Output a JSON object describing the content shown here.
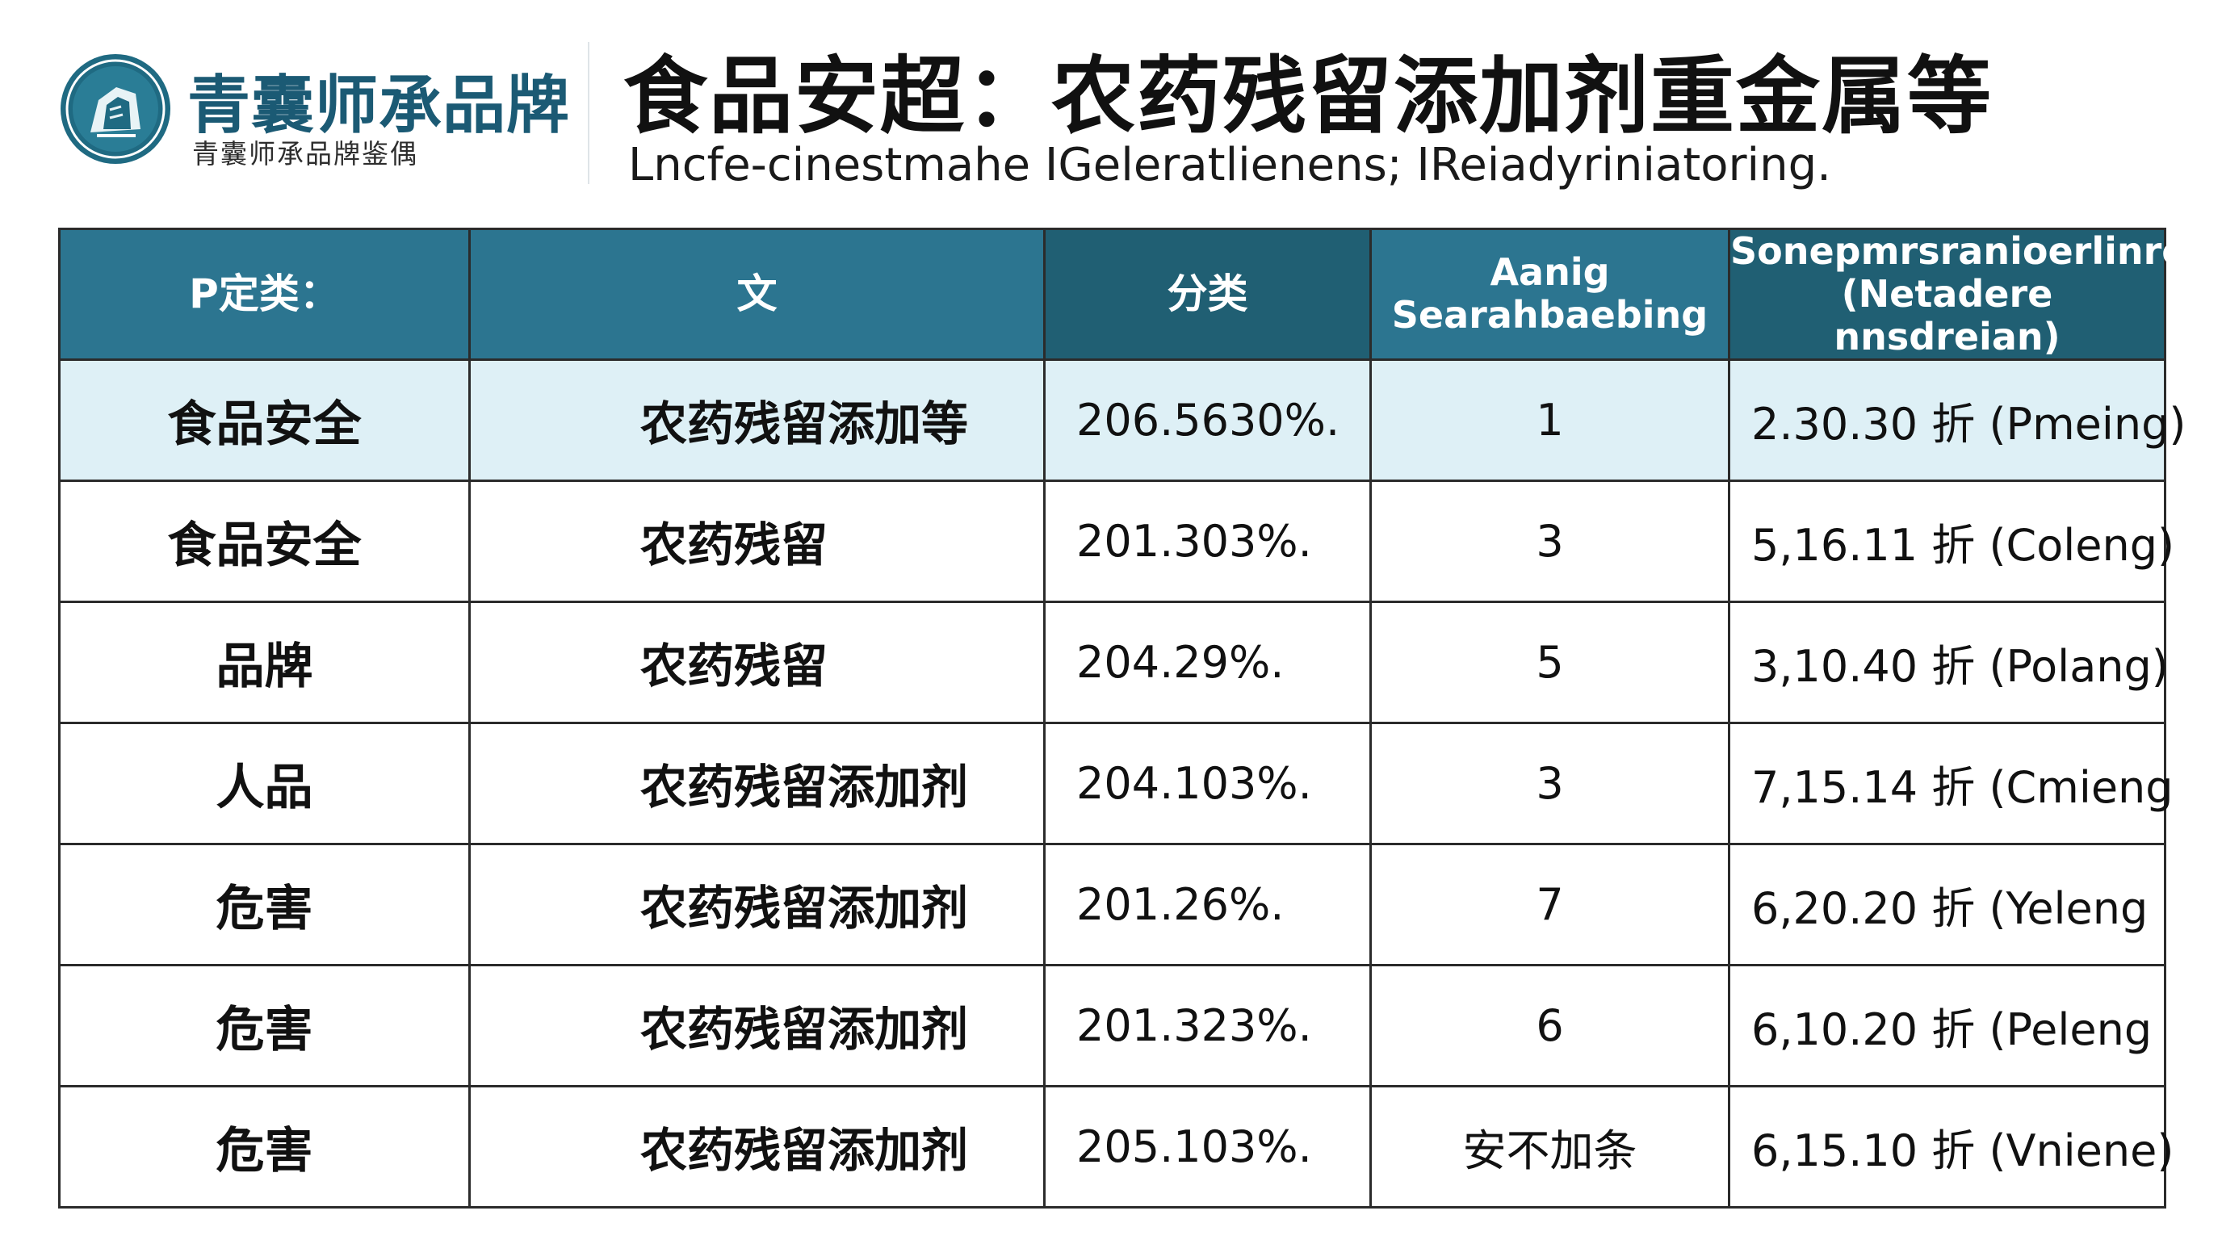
{
  "header": {
    "brand_name": "青囊师承品牌",
    "brand_subtitle": "青囊师承品牌鉴偶",
    "title": "食品安超：农药残留添加剂重金属等",
    "subtitle": "Lncfe-cinestmahe IGeleratlienens; IReiadyriniatoring."
  },
  "colors": {
    "header_bg": "#2c7590",
    "header_bg_dark": "#205f73",
    "highlight_row": "#def0f6",
    "brand_teal": "#1b5a74"
  },
  "table": {
    "columns": [
      {
        "label": "P定类："
      },
      {
        "label": "文"
      },
      {
        "label": "分类"
      },
      {
        "line1": "Aanig",
        "line2": "Searahbaebing"
      },
      {
        "line1": "Sonepmrsranioerlinre",
        "line2": "(Netadere nnsdreian)"
      }
    ],
    "rows": [
      {
        "category": "食品安全",
        "item": "农药残留添加等",
        "percent": "206.5630%.",
        "rank": "1",
        "price": "2.30.30 折 (Pmeing)"
      },
      {
        "category": "食品安全",
        "item": "农药残留",
        "percent": "201.303%.",
        "rank": "3",
        "price": "5,16.11 折 (Coleng)"
      },
      {
        "category": "品牌",
        "item": "农药残留",
        "percent": "204.29%.",
        "rank": "5",
        "price": "3,10.40 折 (Polang)"
      },
      {
        "category": "人品",
        "item": "农药残留添加剂",
        "percent": "204.103%.",
        "rank": "3",
        "price": "7,15.14 折 (Cmieng"
      },
      {
        "category": "危害",
        "item": "农药残留添加剂",
        "percent": "201.26%.",
        "rank": "7",
        "price": "6,20.20 折 (Yeleng"
      },
      {
        "category": "危害",
        "item": "农药残留添加剂",
        "percent": "201.323%.",
        "rank": "6",
        "price": "6,10.20 折 (Peleng"
      },
      {
        "category": "危害",
        "item": "农药残留添加剂",
        "percent": "205.103%.",
        "rank": "安不加条",
        "price": "6,15.10 折 (Vniene)"
      }
    ]
  }
}
